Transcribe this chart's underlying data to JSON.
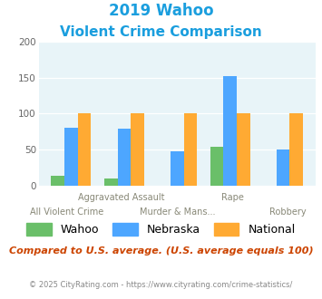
{
  "title_line1": "2019 Wahoo",
  "title_line2": "Violent Crime Comparison",
  "title_color": "#1a9ede",
  "categories": [
    "All Violent Crime",
    "Aggravated Assault",
    "Murder & Mans...",
    "Rape",
    "Robbery"
  ],
  "top_labels": [
    "",
    "Aggravated Assault",
    "",
    "Rape",
    ""
  ],
  "bottom_labels": [
    "All Violent Crime",
    "",
    "Murder & Mans...",
    "",
    "Robbery"
  ],
  "wahoo": [
    13,
    10,
    0,
    54,
    0
  ],
  "nebraska": [
    80,
    79,
    48,
    152,
    50
  ],
  "national": [
    100,
    100,
    100,
    100,
    100
  ],
  "wahoo_color": "#6abf69",
  "nebraska_color": "#4da6ff",
  "national_color": "#ffaa33",
  "ylim": [
    0,
    200
  ],
  "yticks": [
    0,
    50,
    100,
    150,
    200
  ],
  "plot_bg": "#e8f4f8",
  "note": "Compared to U.S. average. (U.S. average equals 100)",
  "note_color": "#cc4400",
  "footer_left": "© 2025 CityRating.com - ",
  "footer_right": "https://www.cityrating.com/crime-statistics/",
  "footer_color": "#888888",
  "footer_link_color": "#1a9ede",
  "bar_width": 0.25
}
